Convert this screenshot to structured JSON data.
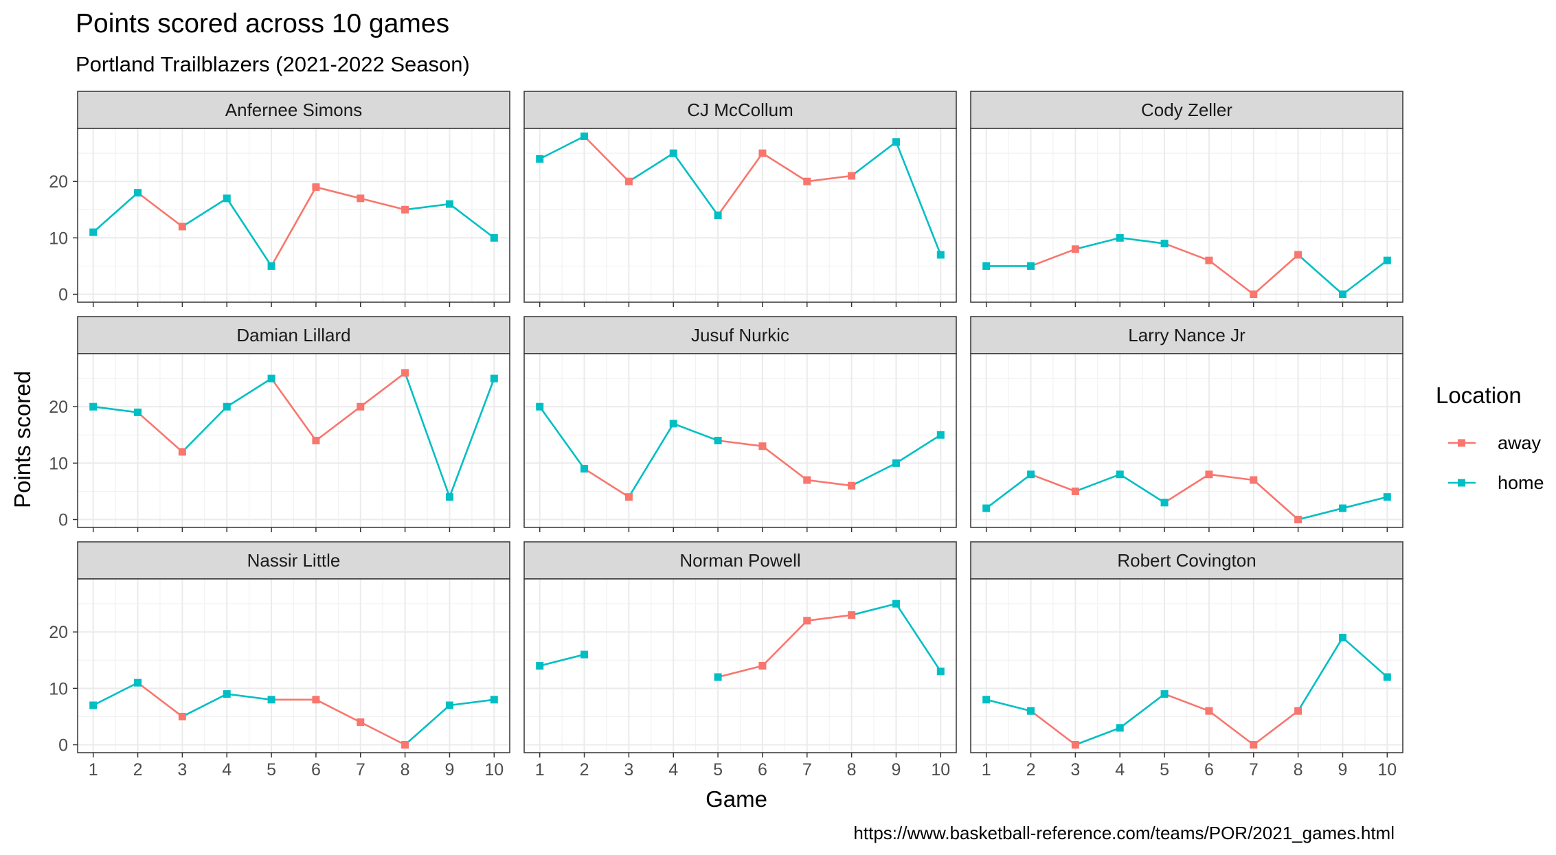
{
  "title": "Points scored across 10 games",
  "subtitle": "Portland Trailblazers (2021-2022 Season)",
  "caption": "https://www.basketball-reference.com/teams/POR/2021_games.html",
  "colors": {
    "away": "#F8766D",
    "home": "#00BFC4"
  },
  "chart_data": {
    "type": "line",
    "facet_layout": "3x3 grid",
    "xlabel": "Game",
    "ylabel": "Points scored",
    "x": [
      1,
      2,
      3,
      4,
      5,
      6,
      7,
      8,
      9,
      10
    ],
    "xticks": [
      "1",
      "2",
      "3",
      "4",
      "5",
      "6",
      "7",
      "8",
      "9",
      "10"
    ],
    "yticks": [
      "0",
      "10",
      "20"
    ],
    "xlim": [
      0.65,
      10.35
    ],
    "ylim": [
      -1.4,
      29.4
    ],
    "grid": true,
    "legend": {
      "title": "Location",
      "placement": "right",
      "entries": [
        {
          "label": "away",
          "group": "away"
        },
        {
          "label": "home",
          "group": "home"
        }
      ]
    },
    "panels": [
      {
        "name": "Anfernee Simons",
        "values": [
          11,
          18,
          12,
          17,
          5,
          19,
          17,
          15,
          16,
          10
        ],
        "location": [
          "home",
          "home",
          "away",
          "home",
          "home",
          "away",
          "away",
          "away",
          "home",
          "home"
        ]
      },
      {
        "name": "CJ McCollum",
        "values": [
          24,
          28,
          20,
          25,
          14,
          25,
          20,
          21,
          27,
          7
        ],
        "location": [
          "home",
          "home",
          "away",
          "home",
          "home",
          "away",
          "away",
          "away",
          "home",
          "home"
        ]
      },
      {
        "name": "Cody Zeller",
        "values": [
          5,
          5,
          8,
          10,
          9,
          6,
          0,
          7,
          0,
          6
        ],
        "location": [
          "home",
          "home",
          "away",
          "home",
          "home",
          "away",
          "away",
          "away",
          "home",
          "home"
        ]
      },
      {
        "name": "Damian Lillard",
        "values": [
          20,
          19,
          12,
          20,
          25,
          14,
          20,
          26,
          4,
          25
        ],
        "location": [
          "home",
          "home",
          "away",
          "home",
          "home",
          "away",
          "away",
          "away",
          "home",
          "home"
        ]
      },
      {
        "name": "Jusuf Nurkic",
        "values": [
          20,
          9,
          4,
          17,
          14,
          13,
          7,
          6,
          10,
          15
        ],
        "location": [
          "home",
          "home",
          "away",
          "home",
          "home",
          "away",
          "away",
          "away",
          "home",
          "home"
        ]
      },
      {
        "name": "Larry Nance Jr",
        "values": [
          2,
          8,
          5,
          8,
          3,
          8,
          7,
          0,
          2,
          4
        ],
        "location": [
          "home",
          "home",
          "away",
          "home",
          "home",
          "away",
          "away",
          "away",
          "home",
          "home"
        ]
      },
      {
        "name": "Nassir Little",
        "values": [
          7,
          11,
          5,
          9,
          8,
          8,
          4,
          0,
          7,
          8
        ],
        "location": [
          "home",
          "home",
          "away",
          "home",
          "home",
          "away",
          "away",
          "away",
          "home",
          "home"
        ]
      },
      {
        "name": "Norman Powell",
        "values": [
          14,
          16,
          null,
          null,
          12,
          14,
          22,
          23,
          25,
          13
        ],
        "location": [
          "home",
          "home",
          "away",
          "home",
          "home",
          "away",
          "away",
          "away",
          "home",
          "home"
        ]
      },
      {
        "name": "Robert Covington",
        "values": [
          8,
          6,
          0,
          3,
          9,
          6,
          0,
          6,
          19,
          12
        ],
        "location": [
          "home",
          "home",
          "away",
          "home",
          "home",
          "away",
          "away",
          "away",
          "home",
          "home"
        ]
      }
    ]
  }
}
